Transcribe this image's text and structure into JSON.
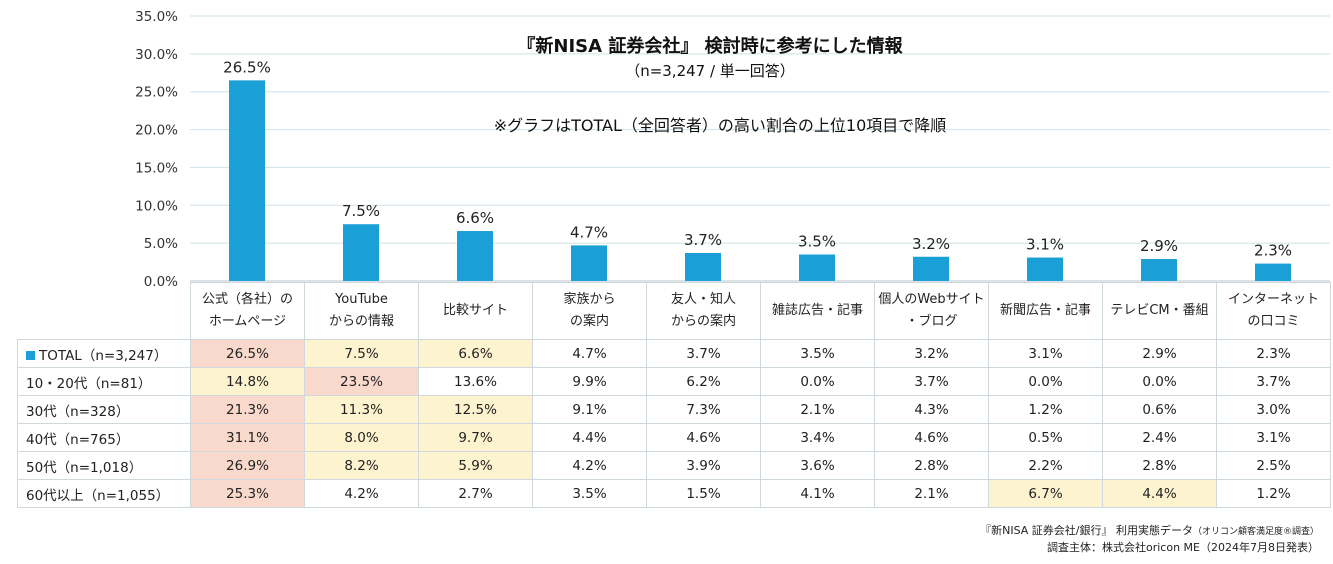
{
  "title": "『新NISA 証券会社』 検討時に参考にした情報",
  "subtitle": "（n=3,247 / 単一回答）",
  "note": "※グラフはTOTAL（全回答者）の高い割合の上位10項目で降順",
  "colors": {
    "bar": "#1a9fd6",
    "highlight_top": "#f8d9cc",
    "highlight_other": "#fdf3cf",
    "gridline": "#cfe0e8"
  },
  "chart_data": {
    "type": "bar",
    "categories": [
      "公式（各社）のホームページ",
      "YouTubeからの情報",
      "比較サイト",
      "家族からの案内",
      "友人・知人からの案内",
      "雑誌広告・記事",
      "個人のWebサイト・ブログ",
      "新聞広告・記事",
      "テレビCM・番組",
      "インターネットの口コミ"
    ],
    "series": [
      {
        "name": "TOTAL（n=3,247）",
        "values": [
          26.5,
          7.5,
          6.6,
          4.7,
          3.7,
          3.5,
          3.2,
          3.1,
          2.9,
          2.3
        ]
      }
    ],
    "data_labels": [
      "26.5%",
      "7.5%",
      "6.6%",
      "4.7%",
      "3.7%",
      "3.5%",
      "3.2%",
      "3.1%",
      "2.9%",
      "2.3%"
    ],
    "ylim": [
      0,
      35
    ],
    "yticks": [
      "0.0%",
      "5.0%",
      "10.0%",
      "15.0%",
      "20.0%",
      "25.0%",
      "30.0%",
      "35.0%"
    ],
    "grid": true
  },
  "table": {
    "header_lines": [
      [
        "公式（各社）の",
        "ホームページ"
      ],
      [
        "YouTube",
        "からの情報"
      ],
      [
        "比較サイト"
      ],
      [
        "家族から",
        "の案内"
      ],
      [
        "友人・知人",
        "からの案内"
      ],
      [
        "雑誌広告・記事"
      ],
      [
        "個人のWebサイト",
        "・ブログ"
      ],
      [
        "新聞広告・記事"
      ],
      [
        "テレビCM・番組"
      ],
      [
        "インターネット",
        "の口コミ"
      ]
    ],
    "rows": [
      {
        "label": "TOTAL（n=3,247）",
        "legend": true,
        "cells": [
          "26.5%",
          "7.5%",
          "6.6%",
          "4.7%",
          "3.7%",
          "3.5%",
          "3.2%",
          "3.1%",
          "2.9%",
          "2.3%"
        ],
        "hl": [
          1,
          2,
          2,
          0,
          0,
          0,
          0,
          0,
          0,
          0
        ]
      },
      {
        "label": "10・20代（n=81）",
        "legend": false,
        "cells": [
          "14.8%",
          "23.5%",
          "13.6%",
          "9.9%",
          "6.2%",
          "0.0%",
          "3.7%",
          "0.0%",
          "0.0%",
          "3.7%"
        ],
        "hl": [
          2,
          1,
          0,
          0,
          0,
          0,
          0,
          0,
          0,
          0
        ]
      },
      {
        "label": "30代（n=328）",
        "legend": false,
        "cells": [
          "21.3%",
          "11.3%",
          "12.5%",
          "9.1%",
          "7.3%",
          "2.1%",
          "4.3%",
          "1.2%",
          "0.6%",
          "3.0%"
        ],
        "hl": [
          1,
          2,
          2,
          0,
          0,
          0,
          0,
          0,
          0,
          0
        ]
      },
      {
        "label": "40代（n=765）",
        "legend": false,
        "cells": [
          "31.1%",
          "8.0%",
          "9.7%",
          "4.4%",
          "4.6%",
          "3.4%",
          "4.6%",
          "0.5%",
          "2.4%",
          "3.1%"
        ],
        "hl": [
          1,
          2,
          2,
          0,
          0,
          0,
          0,
          0,
          0,
          0
        ]
      },
      {
        "label": "50代（n=1,018）",
        "legend": false,
        "cells": [
          "26.9%",
          "8.2%",
          "5.9%",
          "4.2%",
          "3.9%",
          "3.6%",
          "2.8%",
          "2.2%",
          "2.8%",
          "2.5%"
        ],
        "hl": [
          1,
          2,
          2,
          0,
          0,
          0,
          0,
          0,
          0,
          0
        ]
      },
      {
        "label": "60代以上（n=1,055）",
        "legend": false,
        "cells": [
          "25.3%",
          "4.2%",
          "2.7%",
          "3.5%",
          "1.5%",
          "4.1%",
          "2.1%",
          "6.7%",
          "4.4%",
          "1.2%"
        ],
        "hl": [
          1,
          0,
          0,
          0,
          0,
          0,
          0,
          2,
          2,
          0
        ]
      }
    ]
  },
  "footer": {
    "line1": "『新NISA 証券会社/銀行』 利用実態データ",
    "line1_small": "（オリコン顧客満足度®調査）",
    "line2": "調査主体：株式会社oricon ME（2024年7月8日発表）"
  }
}
